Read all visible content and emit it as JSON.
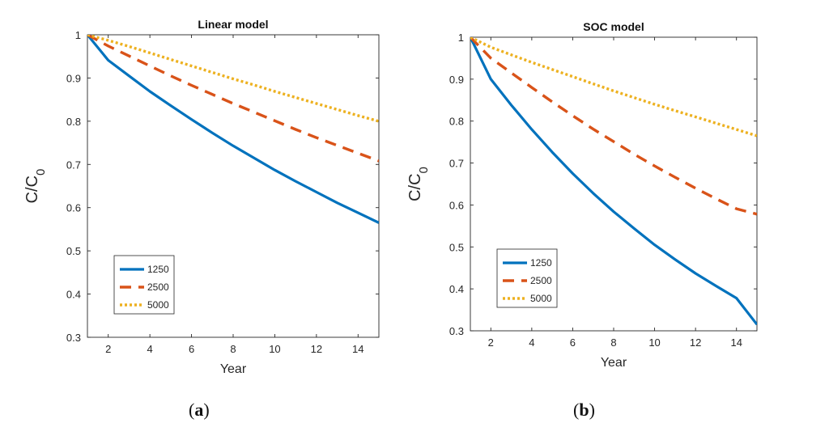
{
  "chart_data": [
    {
      "type": "line",
      "title": "Linear model",
      "xlabel": "Year",
      "ylabel": "C/C",
      "ylabel_sub": "0",
      "xlim": [
        1,
        15
      ],
      "ylim": [
        0.3,
        1
      ],
      "xticks": [
        2,
        4,
        6,
        8,
        10,
        12,
        14
      ],
      "yticks": [
        0.3,
        0.4,
        0.5,
        0.6,
        0.7,
        0.8,
        0.9,
        1
      ],
      "ytick_labels": [
        "0.3",
        "0.4",
        "0.5",
        "0.6",
        "0.7",
        "0.8",
        "0.9",
        "1"
      ],
      "legend_position": "bottom-left",
      "grid": false,
      "x": [
        1,
        2,
        3,
        4,
        5,
        6,
        7,
        8,
        9,
        10,
        11,
        12,
        13,
        14,
        15
      ],
      "series": [
        {
          "name": "1250",
          "color": "#0072BD",
          "style": "solid",
          "values": [
            1.0,
            0.941,
            0.905,
            0.869,
            0.836,
            0.804,
            0.773,
            0.743,
            0.715,
            0.687,
            0.661,
            0.636,
            0.611,
            0.588,
            0.565
          ]
        },
        {
          "name": "2500",
          "color": "#D95319",
          "style": "dashed",
          "values": [
            1.0,
            0.974,
            0.951,
            0.928,
            0.905,
            0.883,
            0.862,
            0.841,
            0.821,
            0.801,
            0.781,
            0.762,
            0.744,
            0.726,
            0.708
          ]
        },
        {
          "name": "5000",
          "color": "#EDB120",
          "style": "dotted",
          "values": [
            1.0,
            0.987,
            0.973,
            0.958,
            0.943,
            0.928,
            0.913,
            0.898,
            0.884,
            0.869,
            0.855,
            0.841,
            0.827,
            0.813,
            0.8
          ]
        }
      ]
    },
    {
      "type": "line",
      "title": "SOC model",
      "xlabel": "Year",
      "ylabel": "C/C",
      "ylabel_sub": "0",
      "xlim": [
        1,
        15
      ],
      "ylim": [
        0.3,
        1
      ],
      "xticks": [
        2,
        4,
        6,
        8,
        10,
        12,
        14
      ],
      "yticks": [
        0.3,
        0.4,
        0.5,
        0.6,
        0.7,
        0.8,
        0.9,
        1
      ],
      "ytick_labels": [
        "0.3",
        "0.4",
        "0.5",
        "0.6",
        "0.7",
        "0.8",
        "0.9",
        "1"
      ],
      "legend_position": "bottom-left",
      "grid": false,
      "x": [
        1,
        2,
        3,
        4,
        5,
        6,
        7,
        8,
        9,
        10,
        11,
        12,
        13,
        14,
        15
      ],
      "series": [
        {
          "name": "1250",
          "color": "#0072BD",
          "style": "solid",
          "values": [
            1.0,
            0.9,
            0.838,
            0.78,
            0.726,
            0.675,
            0.628,
            0.584,
            0.544,
            0.505,
            0.47,
            0.437,
            0.407,
            0.378,
            0.315
          ]
        },
        {
          "name": "2500",
          "color": "#D95319",
          "style": "dashed",
          "values": [
            1.0,
            0.95,
            0.915,
            0.88,
            0.846,
            0.813,
            0.781,
            0.751,
            0.721,
            0.693,
            0.666,
            0.64,
            0.615,
            0.591,
            0.578
          ]
        },
        {
          "name": "5000",
          "color": "#EDB120",
          "style": "dotted",
          "values": [
            1.0,
            0.976,
            0.958,
            0.94,
            0.923,
            0.906,
            0.889,
            0.872,
            0.856,
            0.84,
            0.825,
            0.81,
            0.795,
            0.78,
            0.765
          ]
        }
      ]
    }
  ],
  "captions": [
    "a",
    "b"
  ]
}
